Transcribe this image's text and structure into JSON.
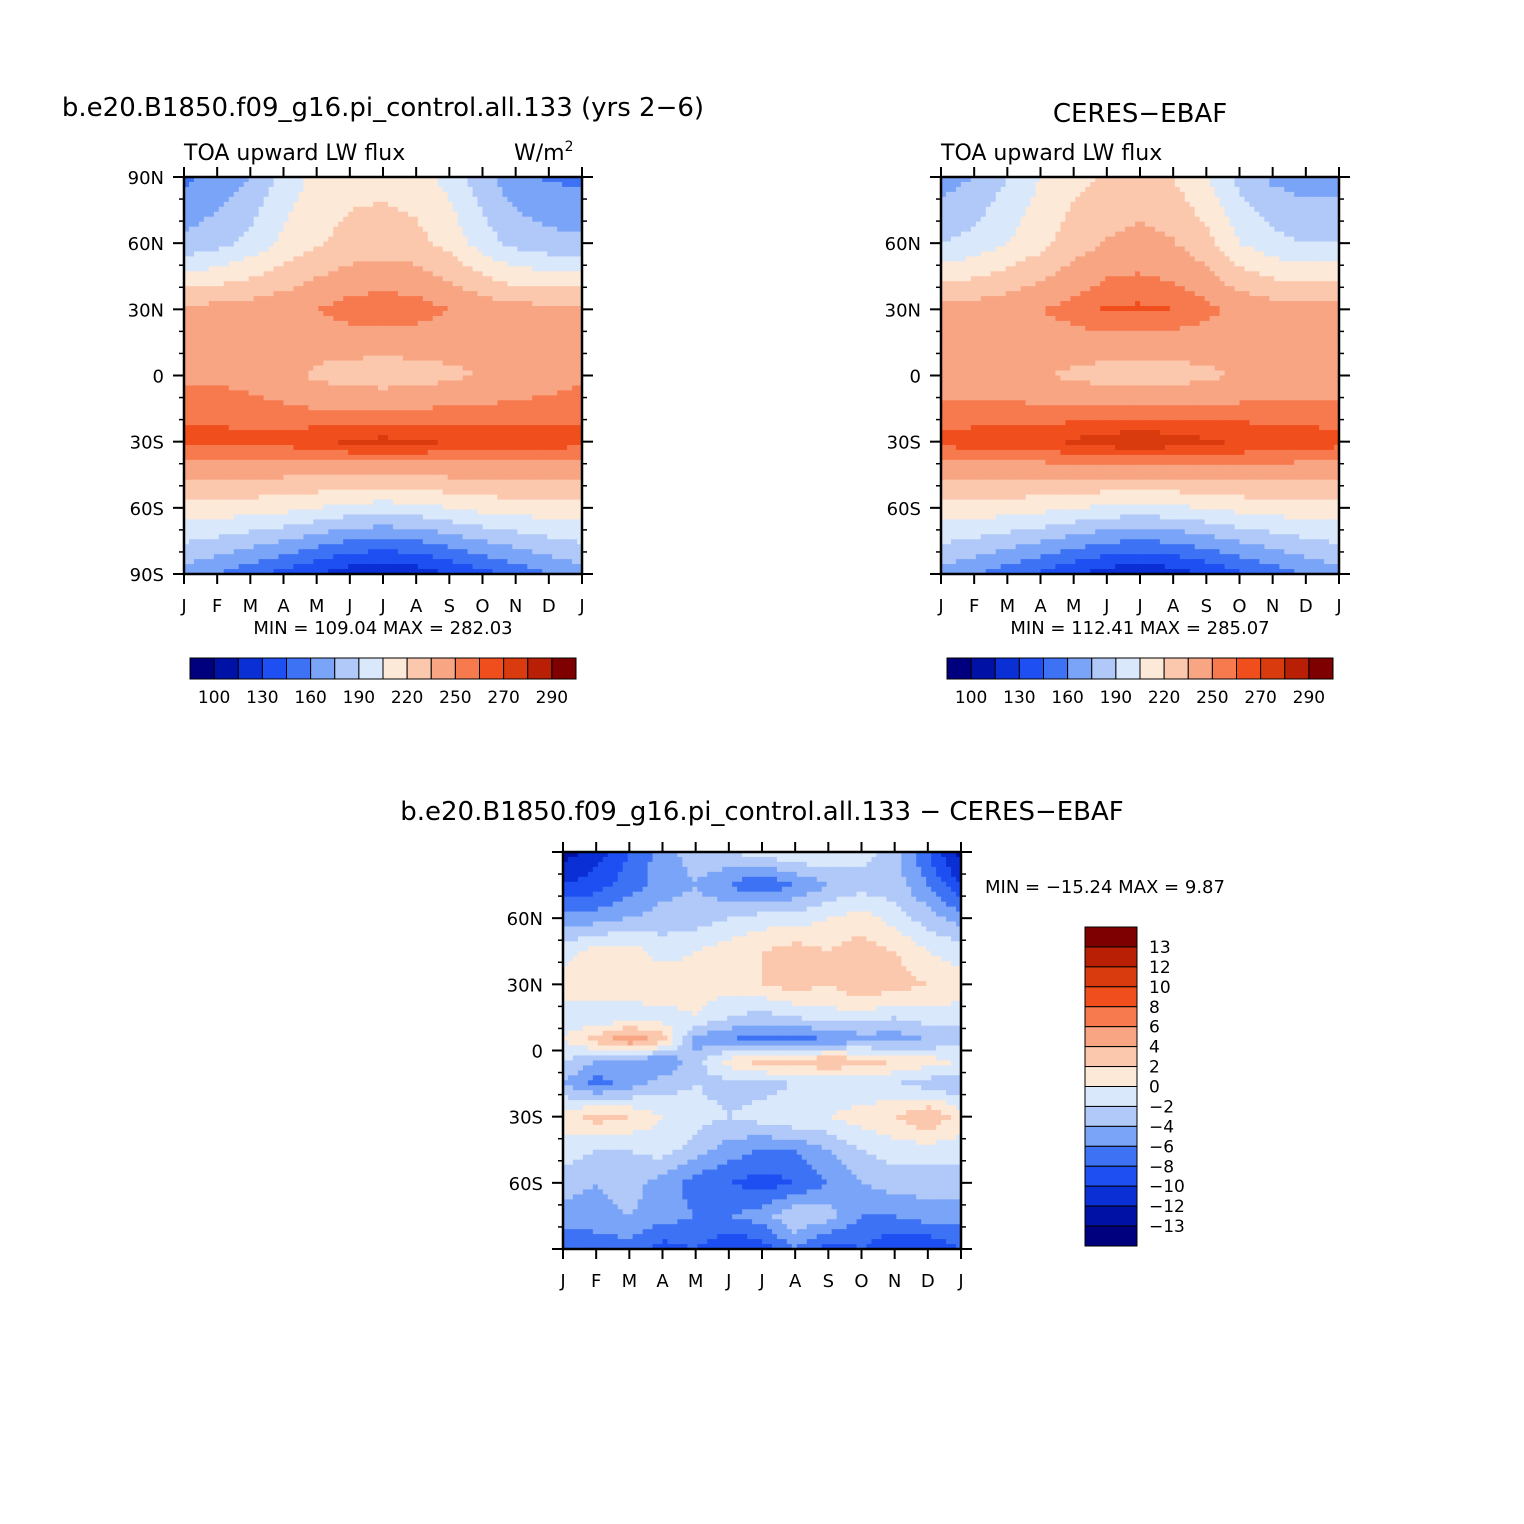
{
  "chart_data": [
    {
      "id": "model",
      "type": "heatmap",
      "title": "b.e20.B1850.f09_g16.pi_control.all.133 (yrs 2−6)",
      "left_label": "TOA upward LW flux",
      "units": "W/m",
      "units_sup": "2",
      "x_ticks": [
        "J",
        "F",
        "M",
        "A",
        "M",
        "J",
        "J",
        "A",
        "S",
        "O",
        "N",
        "D",
        "J"
      ],
      "y_ticks": [
        "90N",
        "60N",
        "30N",
        "0",
        "30S",
        "60S",
        "90S"
      ],
      "minmax": "MIN = 109.04  MAX = 282.03",
      "colorbar_labels": [
        "100",
        "130",
        "160",
        "190",
        "220",
        "250",
        "270",
        "290"
      ],
      "colorbar_colors": [
        "#00007f",
        "#0011a6",
        "#0a2fd4",
        "#1d4ff2",
        "#3d72f5",
        "#7aa4f7",
        "#b0c9f8",
        "#d9e8fb",
        "#fde9d8",
        "#fcc8ad",
        "#f8a583",
        "#f77a4f",
        "#f04f1d",
        "#d93a0e",
        "#b91f05",
        "#7f0000"
      ],
      "x": [
        0,
        1,
        2,
        3,
        4,
        5,
        6,
        7,
        8,
        9,
        10,
        11,
        12
      ],
      "y": [
        90,
        60,
        30,
        0,
        -30,
        -60,
        -90
      ],
      "z": [
        [
          157,
          165,
          175,
          195,
          210,
          215,
          215,
          212,
          200,
          180,
          165,
          158,
          157
        ],
        [
          178,
          185,
          195,
          208,
          218,
          225,
          228,
          225,
          215,
          198,
          185,
          180,
          178
        ],
        [
          240,
          240,
          242,
          245,
          250,
          256,
          258,
          256,
          250,
          244,
          240,
          240,
          240
        ],
        [
          248,
          248,
          245,
          240,
          232,
          228,
          226,
          228,
          232,
          236,
          240,
          244,
          248
        ],
        [
          264,
          264,
          263,
          264,
          268,
          272,
          273,
          272,
          270,
          268,
          266,
          265,
          264
        ],
        [
          214,
          214,
          212,
          210,
          205,
          200,
          198,
          200,
          205,
          210,
          212,
          214,
          214
        ],
        [
          168,
          160,
          150,
          140,
          130,
          120,
          115,
          120,
          130,
          140,
          150,
          160,
          168
        ]
      ]
    },
    {
      "id": "obs",
      "type": "heatmap",
      "title": "CERES−EBAF",
      "left_label": "TOA upward LW flux",
      "x_ticks": [
        "J",
        "F",
        "M",
        "A",
        "M",
        "J",
        "J",
        "A",
        "S",
        "O",
        "N",
        "D",
        "J"
      ],
      "y_ticks": [
        "",
        "60N",
        "30N",
        "0",
        "30S",
        "60S",
        ""
      ],
      "minmax": "MIN = 112.41  MAX = 285.07",
      "colorbar_labels": [
        "100",
        "130",
        "160",
        "190",
        "220",
        "250",
        "270",
        "290"
      ],
      "colorbar_colors": [
        "#00007f",
        "#0011a6",
        "#0a2fd4",
        "#1d4ff2",
        "#3d72f5",
        "#7aa4f7",
        "#b0c9f8",
        "#d9e8fb",
        "#fde9d8",
        "#fcc8ad",
        "#f8a583",
        "#f77a4f",
        "#f04f1d",
        "#d93a0e",
        "#b91f05",
        "#7f0000"
      ],
      "x": [
        0,
        1,
        2,
        3,
        4,
        5,
        6,
        7,
        8,
        9,
        10,
        11,
        12
      ],
      "y": [
        90,
        60,
        30,
        0,
        -30,
        -60,
        -90
      ],
      "z": [
        [
          168,
          175,
          190,
          205,
          215,
          222,
          224,
          220,
          205,
          185,
          172,
          168,
          168
        ],
        [
          190,
          195,
          205,
          215,
          228,
          236,
          240,
          236,
          225,
          205,
          195,
          190,
          190
        ],
        [
          240,
          242,
          245,
          250,
          255,
          262,
          262,
          260,
          254,
          246,
          242,
          240,
          240
        ],
        [
          242,
          242,
          240,
          236,
          232,
          228,
          226,
          228,
          232,
          236,
          238,
          240,
          242
        ],
        [
          264,
          265,
          266,
          268,
          272,
          276,
          278,
          276,
          272,
          270,
          268,
          266,
          264
        ],
        [
          214,
          214,
          212,
          210,
          206,
          202,
          200,
          202,
          206,
          210,
          212,
          214,
          214
        ],
        [
          170,
          162,
          152,
          142,
          132,
          122,
          118,
          122,
          132,
          142,
          152,
          162,
          170
        ]
      ]
    },
    {
      "id": "diff",
      "type": "heatmap",
      "title": "b.e20.B1850.f09_g16.pi_control.all.133 − CERES−EBAF",
      "x_ticks": [
        "J",
        "F",
        "M",
        "A",
        "M",
        "J",
        "J",
        "A",
        "S",
        "O",
        "N",
        "D",
        "J"
      ],
      "y_ticks": [
        "",
        "60N",
        "30N",
        "0",
        "30S",
        "60S",
        ""
      ],
      "minmax": "MIN = −15.24  MAX =    9.87",
      "colorbar_labels": [
        "13",
        "12",
        "10",
        "8",
        "6",
        "4",
        "2",
        "0",
        "−2",
        "−4",
        "−6",
        "−8",
        "−10",
        "−12",
        "−13"
      ],
      "colorbar_colors": [
        "#7f0000",
        "#b91f05",
        "#d93a0e",
        "#f04f1d",
        "#f77a4f",
        "#f8a583",
        "#fcc8ad",
        "#fde9d8",
        "#d9e8fb",
        "#b0c9f8",
        "#7aa4f7",
        "#3d72f5",
        "#1d4ff2",
        "#0a2fd4",
        "#0011a6",
        "#00007f"
      ],
      "x": [
        0,
        1,
        2,
        3,
        4,
        5,
        6,
        7,
        8,
        9,
        10,
        11,
        12
      ],
      "y": [
        90,
        75,
        60,
        45,
        30,
        15,
        5,
        -5,
        -15,
        -30,
        -45,
        -60,
        -75,
        -90
      ],
      "z": [
        [
          -13,
          -11,
          -8,
          -5,
          -3,
          -2,
          -1,
          0,
          0,
          -1,
          -3,
          -8,
          -13
        ],
        [
          -10,
          -9,
          -7,
          -5,
          -4,
          -6,
          -8,
          -6,
          -4,
          -3,
          -3,
          -6,
          -10
        ],
        [
          -5,
          -5,
          -4,
          -3,
          -3,
          -2,
          -1,
          -1,
          0,
          1,
          -1,
          -3,
          -5
        ],
        [
          -1,
          1,
          1,
          -1,
          0,
          1,
          2,
          3,
          2,
          3,
          2,
          0,
          -1
        ],
        [
          1,
          2,
          1,
          2,
          1,
          1,
          2,
          3,
          2,
          4,
          3,
          2,
          1
        ],
        [
          -1,
          -2,
          -1,
          -1,
          0,
          -2,
          -3,
          -2,
          -1,
          -1,
          -2,
          -1,
          -1
        ],
        [
          0,
          3,
          6,
          3,
          -5,
          -6,
          -7,
          -7,
          -6,
          -5,
          -5,
          -4,
          -3
        ],
        [
          -2,
          -4,
          -5,
          -6,
          -3,
          1,
          3,
          3,
          4,
          3,
          2,
          1,
          0
        ],
        [
          -4,
          -7,
          -5,
          -3,
          -2,
          -3,
          -3,
          -2,
          -2,
          -2,
          -2,
          -3,
          -4
        ],
        [
          1,
          3,
          2,
          0,
          -1,
          -2,
          -1,
          0,
          0,
          1,
          2,
          4,
          1
        ],
        [
          -1,
          -2,
          -2,
          -1,
          -3,
          -5,
          -6,
          -6,
          -4,
          -2,
          -1,
          -1,
          -1
        ],
        [
          -3,
          -4,
          -3,
          -5,
          -7,
          -8,
          -9,
          -8,
          -6,
          -4,
          -3,
          -3,
          -3
        ],
        [
          -5,
          -5,
          -4,
          -5,
          -6,
          -6,
          -5,
          -2,
          -3,
          -6,
          -6,
          -5,
          -5
        ],
        [
          -8,
          -7,
          -7,
          -9,
          -8,
          -10,
          -9,
          -6,
          -9,
          -8,
          -10,
          -10,
          -8
        ]
      ]
    }
  ]
}
